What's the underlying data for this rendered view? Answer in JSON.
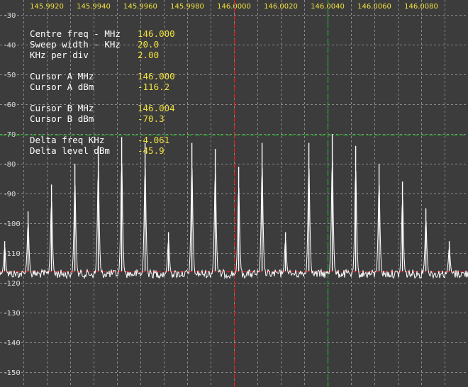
{
  "readout": {
    "centre_freq_label": "Centre freq - MHz",
    "centre_freq_value": "146.000",
    "sweep_width_label": "Sweep width - KHz",
    "sweep_width_value": "20.0",
    "khz_per_div_label": "KHz per div",
    "khz_per_div_value": "2.00",
    "cursor_a_mhz_label": "Cursor A MHz",
    "cursor_a_mhz_value": "146.000",
    "cursor_a_dbm_label": "Cursor A dBm",
    "cursor_a_dbm_value": "-116.2",
    "cursor_b_mhz_label": "Cursor B MHz",
    "cursor_b_mhz_value": "146.004",
    "cursor_b_dbm_label": "Cursor B dBm",
    "cursor_b_dbm_value": "-70.3",
    "delta_freq_label": "Delta freq KHz",
    "delta_freq_value": "-4.061",
    "delta_level_label": "Delta level dBm",
    "delta_level_value": "-45.9"
  },
  "colors": {
    "background": "#3c3c3c",
    "grid": "#8a8a8a",
    "trace": "#ffffff",
    "cursor_a": "#e02020",
    "cursor_b": "#20b020",
    "tick_x": "#f0e040",
    "tick_y": "#dcdcdc"
  },
  "chart_data": {
    "type": "line",
    "title": "",
    "xlabel": "",
    "ylabel": "",
    "x_ticks": [
      "145.9920",
      "145.9940",
      "145.9960",
      "145.9980",
      "146.0000",
      "146.0020",
      "146.0040",
      "146.0060",
      "146.0080"
    ],
    "y_ticks": [
      -30,
      -40,
      -50,
      -60,
      -70,
      -80,
      -90,
      -100,
      -110,
      -120,
      -130,
      -140,
      -150
    ],
    "xlim_mhz": [
      145.99,
      146.01
    ],
    "ylim_dbm": [
      -155,
      -25
    ],
    "grid": true,
    "noise_floor_dbm": -117,
    "peaks": [
      {
        "freq_mhz": 145.9902,
        "level_dbm": -106
      },
      {
        "freq_mhz": 145.9912,
        "level_dbm": -96
      },
      {
        "freq_mhz": 145.9922,
        "level_dbm": -87
      },
      {
        "freq_mhz": 145.9932,
        "level_dbm": -80
      },
      {
        "freq_mhz": 145.9942,
        "level_dbm": -74
      },
      {
        "freq_mhz": 145.9952,
        "level_dbm": -71
      },
      {
        "freq_mhz": 145.9962,
        "level_dbm": -73
      },
      {
        "freq_mhz": 145.9972,
        "level_dbm": -103
      },
      {
        "freq_mhz": 145.9982,
        "level_dbm": -73
      },
      {
        "freq_mhz": 145.9992,
        "level_dbm": -75
      },
      {
        "freq_mhz": 146.0002,
        "level_dbm": -81
      },
      {
        "freq_mhz": 146.0012,
        "level_dbm": -73
      },
      {
        "freq_mhz": 146.0022,
        "level_dbm": -103
      },
      {
        "freq_mhz": 146.0032,
        "level_dbm": -73
      },
      {
        "freq_mhz": 146.0042,
        "level_dbm": -70
      },
      {
        "freq_mhz": 146.0052,
        "level_dbm": -74
      },
      {
        "freq_mhz": 146.0062,
        "level_dbm": -80
      },
      {
        "freq_mhz": 146.0072,
        "level_dbm": -86
      },
      {
        "freq_mhz": 146.0082,
        "level_dbm": -95
      },
      {
        "freq_mhz": 146.0092,
        "level_dbm": -106
      }
    ],
    "cursor_a": {
      "freq_mhz": 146.0,
      "level_dbm": -116.2
    },
    "cursor_b": {
      "freq_mhz": 146.004,
      "level_dbm": -70.3
    }
  }
}
